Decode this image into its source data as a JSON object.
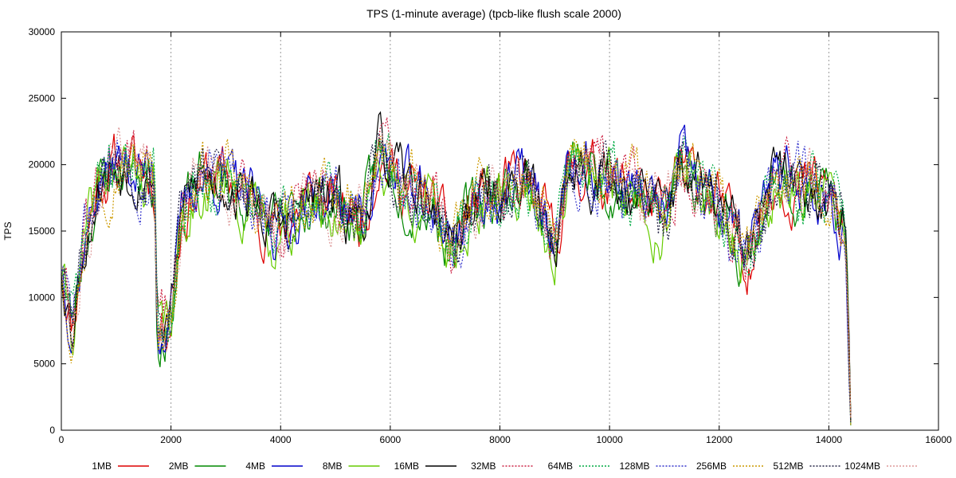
{
  "chart_data": {
    "type": "line",
    "title": "TPS (1-minute average) (tpcb-like flush scale 2000)",
    "xlabel": "",
    "ylabel": "TPS",
    "xlim": [
      0,
      16000
    ],
    "ylim": [
      0,
      30000
    ],
    "x_ticks": [
      0,
      2000,
      4000,
      6000,
      8000,
      10000,
      12000,
      14000,
      16000
    ],
    "y_ticks": [
      0,
      5000,
      10000,
      15000,
      20000,
      25000,
      30000
    ],
    "grid": "vertical dotted",
    "legend_position": "bottom",
    "series": [
      {
        "name": "1MB",
        "color": "#dd0000",
        "dash": "solid",
        "seed": 11,
        "offset": 0
      },
      {
        "name": "2MB",
        "color": "#008800",
        "dash": "solid",
        "seed": 23,
        "offset": -200
      },
      {
        "name": "4MB",
        "color": "#0000cc",
        "dash": "solid",
        "seed": 37,
        "offset": 0
      },
      {
        "name": "8MB",
        "color": "#66cc00",
        "dash": "solid",
        "seed": 41,
        "offset": -600
      },
      {
        "name": "16MB",
        "color": "#000000",
        "dash": "solid",
        "seed": 53,
        "offset": 0
      },
      {
        "name": "32MB",
        "color": "#cc2244",
        "dash": "dotted",
        "seed": 61,
        "offset": 0
      },
      {
        "name": "64MB",
        "color": "#00aa44",
        "dash": "dotted",
        "seed": 71,
        "offset": 0
      },
      {
        "name": "128MB",
        "color": "#3333cc",
        "dash": "dotted",
        "seed": 83,
        "offset": 0
      },
      {
        "name": "256MB",
        "color": "#cc9900",
        "dash": "dotted",
        "seed": 97,
        "offset": 0
      },
      {
        "name": "512MB",
        "color": "#222244",
        "dash": "dotted",
        "seed": 101,
        "offset": 0
      },
      {
        "name": "1024MB",
        "color": "#dd9999",
        "dash": "dotted",
        "seed": 113,
        "offset": 0
      }
    ],
    "profile": [
      [
        0,
        12500
      ],
      [
        200,
        8000
      ],
      [
        400,
        14000
      ],
      [
        700,
        19000
      ],
      [
        1000,
        20000
      ],
      [
        1400,
        20000
      ],
      [
        1700,
        19000
      ],
      [
        1750,
        7500
      ],
      [
        2000,
        9000
      ],
      [
        2200,
        16000
      ],
      [
        2500,
        19000
      ],
      [
        3000,
        19000
      ],
      [
        3500,
        17000
      ],
      [
        4000,
        15000
      ],
      [
        4500,
        17500
      ],
      [
        5000,
        17000
      ],
      [
        5500,
        16000
      ],
      [
        5800,
        21000
      ],
      [
        6200,
        18500
      ],
      [
        6800,
        17000
      ],
      [
        7100,
        14000
      ],
      [
        7500,
        17000
      ],
      [
        8000,
        18000
      ],
      [
        8500,
        19000
      ],
      [
        9000,
        14000
      ],
      [
        9300,
        20000
      ],
      [
        10000,
        19000
      ],
      [
        10500,
        18000
      ],
      [
        11000,
        16000
      ],
      [
        11300,
        20000
      ],
      [
        12000,
        17000
      ],
      [
        12500,
        13000
      ],
      [
        13000,
        19000
      ],
      [
        13500,
        18500
      ],
      [
        14000,
        18000
      ],
      [
        14300,
        15000
      ],
      [
        14400,
        800
      ]
    ]
  }
}
